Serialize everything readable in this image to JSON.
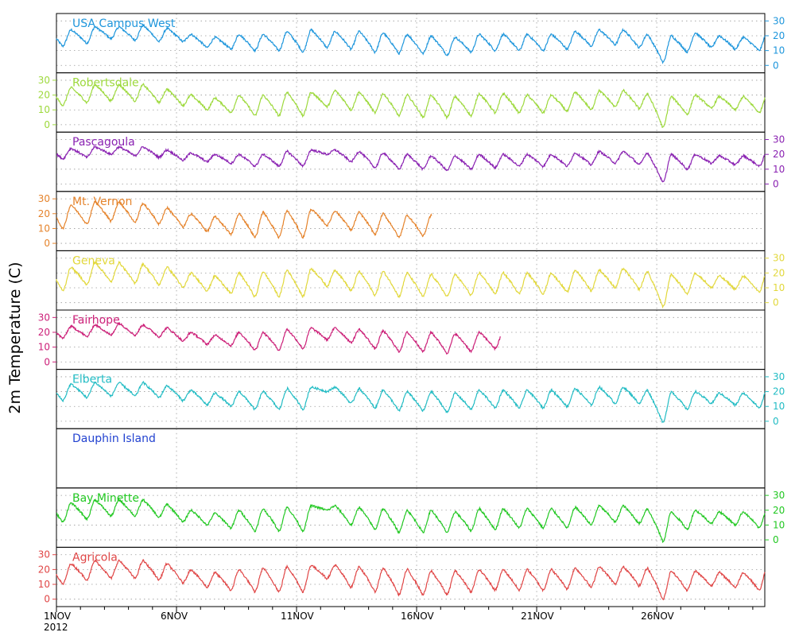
{
  "chart_data": {
    "type": "line",
    "title": "",
    "ylabel": "2m Temperature (C)",
    "xlabel": "",
    "x_range": [
      "2012-11-01T00:00",
      "2012-11-30T12:00"
    ],
    "ylim": [
      -5,
      35
    ],
    "y_ticks": [
      0,
      10,
      20,
      30
    ],
    "x_ticks": [
      {
        "date": "2012-11-01",
        "label": "1NOV",
        "sublabel": "2012"
      },
      {
        "date": "2012-11-06",
        "label": "6NOV",
        "sublabel": ""
      },
      {
        "date": "2012-11-11",
        "label": "11NOV",
        "sublabel": ""
      },
      {
        "date": "2012-11-16",
        "label": "16NOV",
        "sublabel": ""
      },
      {
        "date": "2012-11-21",
        "label": "21NOV",
        "sublabel": ""
      },
      {
        "date": "2012-11-26",
        "label": "26NOV",
        "sublabel": ""
      }
    ],
    "grid": true,
    "series": [
      {
        "name": "USA Campus West",
        "color": "#1e96dc",
        "axis_side": "right",
        "x_start": "2012-11-01",
        "x_end": "2012-11-30T12:00",
        "daily_min": [
          13,
          15,
          18,
          17,
          16,
          16,
          12,
          11,
          10,
          10,
          9,
          12,
          11,
          9,
          8,
          8,
          7,
          9,
          10,
          10,
          10,
          11,
          13,
          14,
          12,
          2,
          9,
          12,
          11,
          10
        ],
        "daily_max": [
          24,
          26,
          26,
          27,
          25,
          21,
          19,
          21,
          21,
          23,
          24,
          23,
          23,
          22,
          21,
          20,
          19,
          21,
          21,
          21,
          21,
          23,
          24,
          24,
          21,
          20,
          22,
          20,
          19,
          23
        ]
      },
      {
        "name": "Robertsdale",
        "color": "#9dd93c",
        "axis_side": "left",
        "x_start": "2012-11-01",
        "x_end": "2012-11-30T12:00",
        "daily_min": [
          13,
          15,
          16,
          16,
          15,
          13,
          10,
          8,
          6,
          6,
          6,
          12,
          10,
          8,
          6,
          5,
          5,
          6,
          8,
          8,
          8,
          9,
          10,
          12,
          11,
          -2,
          7,
          11,
          10,
          8
        ],
        "daily_max": [
          25,
          27,
          27,
          27,
          24,
          20,
          18,
          20,
          20,
          22,
          22,
          23,
          22,
          21,
          20,
          20,
          19,
          21,
          21,
          20,
          20,
          22,
          23,
          23,
          21,
          19,
          20,
          19,
          19,
          22
        ]
      },
      {
        "name": "Pascagoula",
        "color": "#8a22b2",
        "axis_side": "right",
        "x_start": "2012-11-01",
        "x_end": "2012-11-30T12:00",
        "daily_min": [
          17,
          18,
          20,
          19,
          18,
          16,
          15,
          14,
          12,
          12,
          12,
          20,
          15,
          11,
          10,
          10,
          9,
          10,
          11,
          12,
          12,
          12,
          13,
          14,
          13,
          1,
          10,
          14,
          13,
          12
        ],
        "daily_max": [
          24,
          25,
          25,
          25,
          23,
          21,
          20,
          20,
          20,
          22,
          23,
          23,
          22,
          21,
          20,
          19,
          19,
          20,
          20,
          20,
          20,
          21,
          22,
          22,
          21,
          20,
          20,
          19,
          19,
          22
        ]
      },
      {
        "name": "Mt. Vernon",
        "color": "#e5832b",
        "axis_side": "left",
        "x_start": "2012-11-01",
        "x_end": "2012-11-16T15:00",
        "daily_min": [
          10,
          13,
          15,
          14,
          13,
          11,
          8,
          6,
          4,
          4,
          4,
          12,
          9,
          6,
          4,
          5
        ],
        "daily_max": [
          26,
          28,
          28,
          27,
          24,
          20,
          18,
          20,
          21,
          22,
          23,
          22,
          21,
          20,
          19,
          19
        ]
      },
      {
        "name": "Geneva",
        "color": "#e2d83c",
        "axis_side": "right",
        "x_start": "2012-11-01",
        "x_end": "2012-11-30T12:00",
        "daily_min": [
          8,
          12,
          14,
          13,
          12,
          10,
          8,
          6,
          4,
          4,
          4,
          11,
          8,
          5,
          4,
          4,
          4,
          5,
          6,
          6,
          6,
          7,
          8,
          10,
          9,
          -3,
          6,
          10,
          9,
          7
        ],
        "daily_max": [
          24,
          27,
          27,
          26,
          24,
          20,
          18,
          20,
          21,
          22,
          23,
          22,
          21,
          21,
          20,
          19,
          19,
          20,
          20,
          20,
          20,
          22,
          22,
          23,
          21,
          19,
          20,
          18,
          18,
          22
        ]
      },
      {
        "name": "Fairhope",
        "color": "#cc1f78",
        "axis_side": "left",
        "x_start": "2012-11-01",
        "x_end": "2012-11-19T12:00",
        "daily_min": [
          16,
          17,
          18,
          18,
          17,
          14,
          12,
          11,
          8,
          8,
          9,
          15,
          13,
          9,
          7,
          7,
          6,
          7,
          9
        ],
        "daily_max": [
          24,
          25,
          26,
          25,
          23,
          20,
          18,
          20,
          20,
          22,
          23,
          23,
          22,
          21,
          20,
          20,
          19,
          20,
          20
        ]
      },
      {
        "name": "Elberta",
        "color": "#22bcc4",
        "axis_side": "right",
        "x_start": "2012-11-01",
        "x_end": "2012-11-30T12:00",
        "daily_min": [
          14,
          16,
          17,
          17,
          16,
          14,
          11,
          10,
          8,
          8,
          8,
          20,
          12,
          9,
          7,
          7,
          6,
          8,
          9,
          9,
          9,
          10,
          11,
          12,
          12,
          -1,
          8,
          12,
          11,
          9
        ],
        "daily_max": [
          25,
          26,
          26,
          26,
          24,
          21,
          19,
          20,
          20,
          22,
          23,
          23,
          22,
          21,
          20,
          20,
          19,
          21,
          21,
          21,
          21,
          22,
          23,
          23,
          21,
          20,
          20,
          19,
          19,
          22
        ]
      },
      {
        "name": "Dauphin Island",
        "color": "#2242d0",
        "axis_side": "left",
        "x_start": "",
        "x_end": "",
        "daily_min": [],
        "daily_max": []
      },
      {
        "name": "Bay Minette",
        "color": "#22c822",
        "axis_side": "right",
        "x_start": "2012-11-01",
        "x_end": "2012-11-30T12:00",
        "daily_min": [
          12,
          14,
          16,
          16,
          15,
          12,
          10,
          8,
          6,
          6,
          6,
          20,
          10,
          7,
          5,
          5,
          5,
          6,
          7,
          8,
          8,
          8,
          10,
          12,
          11,
          -1,
          7,
          11,
          10,
          8
        ],
        "daily_max": [
          25,
          27,
          27,
          27,
          24,
          20,
          18,
          20,
          21,
          22,
          23,
          23,
          22,
          21,
          20,
          20,
          19,
          21,
          21,
          21,
          21,
          22,
          23,
          23,
          21,
          19,
          20,
          19,
          19,
          22
        ]
      },
      {
        "name": "Agricola",
        "color": "#e04646",
        "axis_side": "left",
        "x_start": "2012-11-01",
        "x_end": "2012-11-30T12:00",
        "daily_min": [
          10,
          13,
          14,
          14,
          13,
          11,
          8,
          6,
          5,
          5,
          5,
          14,
          8,
          5,
          3,
          3,
          3,
          5,
          6,
          6,
          6,
          7,
          8,
          10,
          9,
          0,
          6,
          9,
          8,
          6
        ],
        "daily_max": [
          24,
          26,
          26,
          26,
          24,
          20,
          18,
          20,
          21,
          22,
          23,
          23,
          22,
          21,
          20,
          19,
          19,
          20,
          20,
          20,
          20,
          21,
          22,
          22,
          21,
          19,
          19,
          18,
          18,
          22
        ]
      }
    ]
  }
}
